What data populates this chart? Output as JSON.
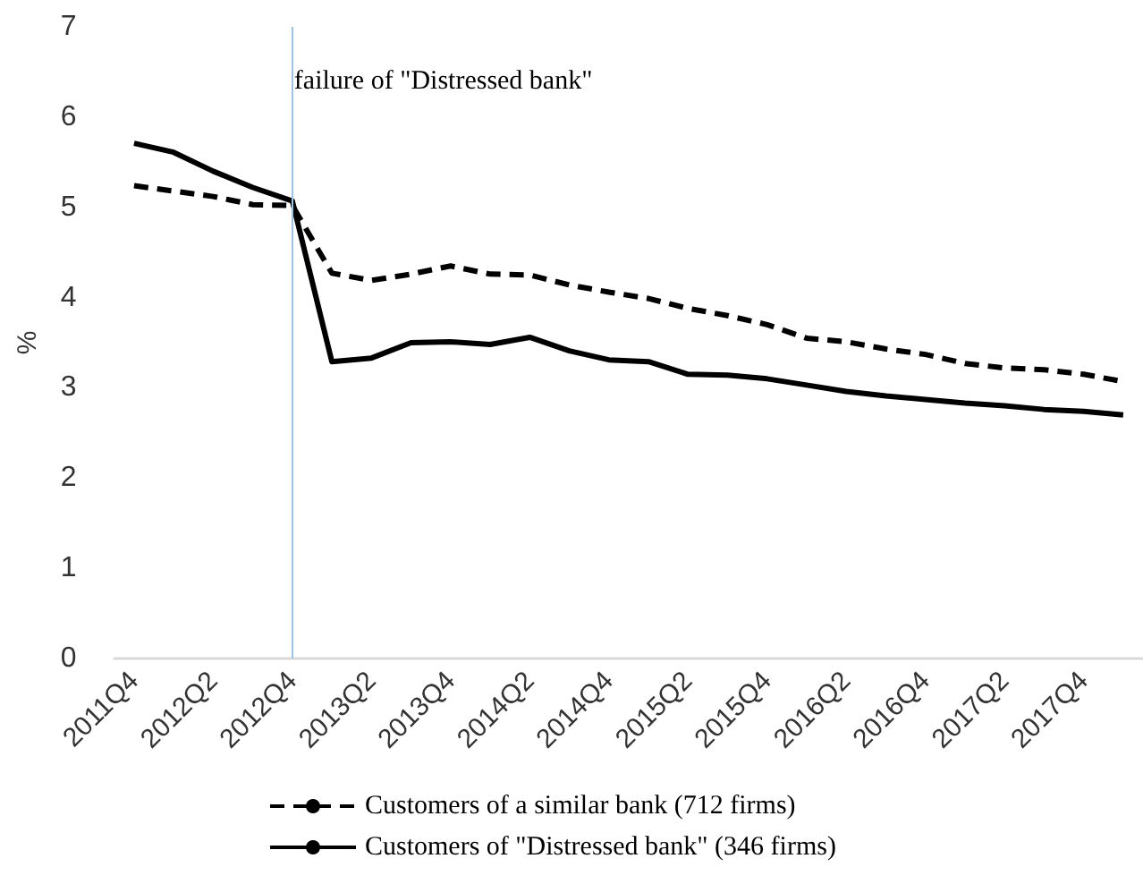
{
  "chart_data": {
    "type": "line",
    "ylabel": "%",
    "categories": [
      "2011Q4",
      null,
      "2012Q2",
      null,
      "2012Q4",
      null,
      "2013Q2",
      null,
      "2013Q4",
      null,
      "2014Q2",
      null,
      "2014Q4",
      null,
      "2015Q2",
      null,
      "2015Q4",
      null,
      "2016Q2",
      null,
      "2016Q4",
      null,
      "2017Q2",
      null,
      "2017Q4",
      null
    ],
    "series": [
      {
        "name": "Customers of a similar bank (712 firms)",
        "color": "#000000",
        "line_style": "dashed",
        "values": [
          5.24,
          5.18,
          5.12,
          5.03,
          5.02,
          4.27,
          4.19,
          4.26,
          4.35,
          4.26,
          4.25,
          4.14,
          4.06,
          3.99,
          3.88,
          3.8,
          3.7,
          3.55,
          3.51,
          3.43,
          3.37,
          3.27,
          3.22,
          3.2,
          3.15,
          3.07
        ]
      },
      {
        "name": "Customers of \"Distressed bank\" (346 firms)",
        "color": "#000000",
        "line_style": "solid",
        "values": [
          5.71,
          5.61,
          5.4,
          5.22,
          5.07,
          3.29,
          3.33,
          3.5,
          3.51,
          3.48,
          3.56,
          3.41,
          3.31,
          3.29,
          3.15,
          3.14,
          3.1,
          3.03,
          2.96,
          2.91,
          2.87,
          2.83,
          2.8,
          2.76,
          2.74,
          2.7
        ]
      }
    ],
    "ylim": [
      0,
      7
    ],
    "yticks": [
      0,
      1,
      2,
      3,
      4,
      5,
      6,
      7
    ],
    "grid": false,
    "legend": "bottom",
    "marker": "none",
    "ref_lines": [
      {
        "axis": "x",
        "value": "2012Q4",
        "label": "failure of \"Distressed bank\"",
        "color": "#9dc3e6"
      }
    ]
  }
}
